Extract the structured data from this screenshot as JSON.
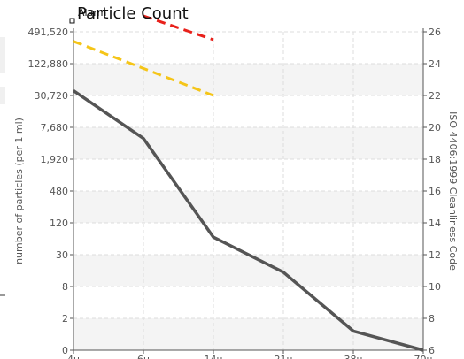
{
  "chart_data": {
    "type": "line",
    "title": "Particle Count",
    "legend": {
      "label": "Alarm",
      "placement": "top-left"
    },
    "xlabel": "",
    "ylabel": "number of particles (per 1 ml)",
    "y2label": "ISO 4406:1999 Cleanliness Code",
    "x_ticks": [
      "4μ",
      "6μ",
      "14μ",
      "21μ",
      "38μ",
      "70μ"
    ],
    "y_ticks": [
      "0",
      "2",
      "8",
      "30",
      "120",
      "480",
      "1,920",
      "7,680",
      "30,720",
      "122,880",
      "491,520"
    ],
    "y2_ticks": [
      "6",
      "8",
      "10",
      "12",
      "14",
      "16",
      "18",
      "20",
      "22",
      "24",
      "26"
    ],
    "grid": true,
    "series": [
      {
        "color": "#555555",
        "style": "solid",
        "x": [
          "4μ",
          "6μ",
          "14μ",
          "21μ",
          "38μ",
          "70μ"
        ],
        "iso_code": [
          22.3,
          19.3,
          13.1,
          10.9,
          7.2,
          6.0
        ]
      },
      {
        "color": "#f5c518",
        "style": "dashed",
        "x": [
          "4μ",
          "14μ"
        ],
        "iso_code": [
          25.4,
          22.0
        ]
      },
      {
        "color": "#e8201a",
        "style": "dashed",
        "x": [
          "6μ",
          "14μ"
        ],
        "iso_code": [
          27.0,
          25.5
        ]
      }
    ]
  }
}
